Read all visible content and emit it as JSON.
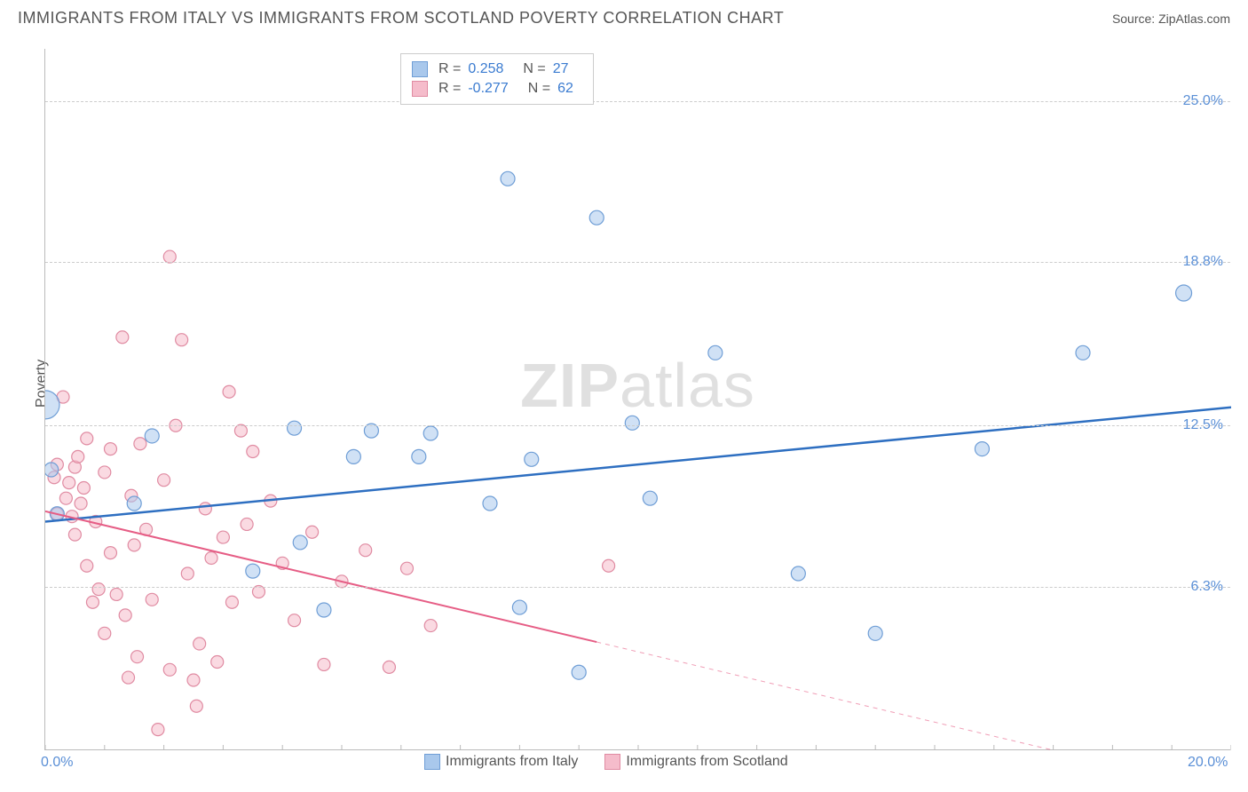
{
  "header": {
    "title": "IMMIGRANTS FROM ITALY VS IMMIGRANTS FROM SCOTLAND POVERTY CORRELATION CHART",
    "source_label": "Source: ",
    "source_name": "ZipAtlas.com"
  },
  "watermark": {
    "bold": "ZIP",
    "light": "atlas"
  },
  "ylabel": "Poverty",
  "chart": {
    "type": "scatter",
    "xlim": [
      0,
      20
    ],
    "ylim": [
      0,
      27
    ],
    "xticks": [
      {
        "v": 0,
        "label": "0.0%"
      },
      {
        "v": 20,
        "label": "20.0%"
      }
    ],
    "yticks": [
      {
        "v": 6.3,
        "label": "6.3%"
      },
      {
        "v": 12.5,
        "label": "12.5%"
      },
      {
        "v": 18.8,
        "label": "18.8%"
      },
      {
        "v": 25.0,
        "label": "25.0%"
      }
    ],
    "grid_color": "#cccccc",
    "background_color": "#ffffff"
  },
  "series": {
    "italy": {
      "label": "Immigrants from Italy",
      "fill": "#a9c8ec",
      "stroke": "#6f9ed6",
      "fill_opacity": 0.55,
      "trend": {
        "x1": 0,
        "y1": 8.8,
        "x2": 20,
        "y2": 13.2,
        "solid_until_x": 20,
        "color": "#2e6fc1",
        "width": 2.5
      },
      "stats": {
        "R": "0.258",
        "N": "27"
      },
      "points": [
        {
          "x": 0.0,
          "y": 13.3,
          "r": 16
        },
        {
          "x": 0.2,
          "y": 9.1,
          "r": 8
        },
        {
          "x": 0.1,
          "y": 10.8,
          "r": 8
        },
        {
          "x": 1.8,
          "y": 12.1,
          "r": 8
        },
        {
          "x": 1.5,
          "y": 9.5,
          "r": 8
        },
        {
          "x": 3.5,
          "y": 6.9,
          "r": 8
        },
        {
          "x": 4.2,
          "y": 12.4,
          "r": 8
        },
        {
          "x": 4.3,
          "y": 8.0,
          "r": 8
        },
        {
          "x": 4.7,
          "y": 5.4,
          "r": 8
        },
        {
          "x": 5.2,
          "y": 11.3,
          "r": 8
        },
        {
          "x": 5.5,
          "y": 12.3,
          "r": 8
        },
        {
          "x": 6.3,
          "y": 11.3,
          "r": 8
        },
        {
          "x": 6.5,
          "y": 12.2,
          "r": 8
        },
        {
          "x": 7.5,
          "y": 9.5,
          "r": 8
        },
        {
          "x": 7.8,
          "y": 22.0,
          "r": 8
        },
        {
          "x": 8.0,
          "y": 5.5,
          "r": 8
        },
        {
          "x": 8.2,
          "y": 11.2,
          "r": 8
        },
        {
          "x": 9.0,
          "y": 3.0,
          "r": 8
        },
        {
          "x": 9.3,
          "y": 20.5,
          "r": 8
        },
        {
          "x": 9.9,
          "y": 12.6,
          "r": 8
        },
        {
          "x": 10.2,
          "y": 9.7,
          "r": 8
        },
        {
          "x": 12.7,
          "y": 6.8,
          "r": 8
        },
        {
          "x": 14.0,
          "y": 4.5,
          "r": 8
        },
        {
          "x": 15.8,
          "y": 11.6,
          "r": 8
        },
        {
          "x": 17.5,
          "y": 15.3,
          "r": 8
        },
        {
          "x": 19.2,
          "y": 17.6,
          "r": 9
        },
        {
          "x": 11.3,
          "y": 15.3,
          "r": 8
        }
      ]
    },
    "scotland": {
      "label": "Immigrants from Scotland",
      "fill": "#f5bccb",
      "stroke": "#e08ba2",
      "fill_opacity": 0.55,
      "trend": {
        "x1": 0,
        "y1": 9.2,
        "x2": 17,
        "y2": 0.0,
        "solid_until_x": 9.3,
        "color": "#e65d85",
        "width": 2
      },
      "stats": {
        "R": "-0.277",
        "N": "62"
      },
      "points": [
        {
          "x": 0.2,
          "y": 9.1,
          "r": 7
        },
        {
          "x": 0.15,
          "y": 10.5,
          "r": 7
        },
        {
          "x": 0.2,
          "y": 11.0,
          "r": 7
        },
        {
          "x": 0.3,
          "y": 13.6,
          "r": 7
        },
        {
          "x": 0.35,
          "y": 9.7,
          "r": 7
        },
        {
          "x": 0.4,
          "y": 10.3,
          "r": 7
        },
        {
          "x": 0.45,
          "y": 9.0,
          "r": 7
        },
        {
          "x": 0.5,
          "y": 10.9,
          "r": 7
        },
        {
          "x": 0.5,
          "y": 8.3,
          "r": 7
        },
        {
          "x": 0.55,
          "y": 11.3,
          "r": 7
        },
        {
          "x": 0.6,
          "y": 9.5,
          "r": 7
        },
        {
          "x": 0.65,
          "y": 10.1,
          "r": 7
        },
        {
          "x": 0.7,
          "y": 7.1,
          "r": 7
        },
        {
          "x": 0.7,
          "y": 12.0,
          "r": 7
        },
        {
          "x": 0.8,
          "y": 5.7,
          "r": 7
        },
        {
          "x": 0.85,
          "y": 8.8,
          "r": 7
        },
        {
          "x": 0.9,
          "y": 6.2,
          "r": 7
        },
        {
          "x": 1.0,
          "y": 4.5,
          "r": 7
        },
        {
          "x": 1.0,
          "y": 10.7,
          "r": 7
        },
        {
          "x": 1.1,
          "y": 11.6,
          "r": 7
        },
        {
          "x": 1.1,
          "y": 7.6,
          "r": 7
        },
        {
          "x": 1.2,
          "y": 6.0,
          "r": 7
        },
        {
          "x": 1.3,
          "y": 15.9,
          "r": 7
        },
        {
          "x": 1.35,
          "y": 5.2,
          "r": 7
        },
        {
          "x": 1.4,
          "y": 2.8,
          "r": 7
        },
        {
          "x": 1.45,
          "y": 9.8,
          "r": 7
        },
        {
          "x": 1.5,
          "y": 7.9,
          "r": 7
        },
        {
          "x": 1.55,
          "y": 3.6,
          "r": 7
        },
        {
          "x": 1.6,
          "y": 11.8,
          "r": 7
        },
        {
          "x": 1.7,
          "y": 8.5,
          "r": 7
        },
        {
          "x": 1.8,
          "y": 5.8,
          "r": 7
        },
        {
          "x": 1.9,
          "y": 0.8,
          "r": 7
        },
        {
          "x": 2.0,
          "y": 10.4,
          "r": 7
        },
        {
          "x": 2.1,
          "y": 19.0,
          "r": 7
        },
        {
          "x": 2.1,
          "y": 3.1,
          "r": 7
        },
        {
          "x": 2.2,
          "y": 12.5,
          "r": 7
        },
        {
          "x": 2.3,
          "y": 15.8,
          "r": 7
        },
        {
          "x": 2.4,
          "y": 6.8,
          "r": 7
        },
        {
          "x": 2.5,
          "y": 2.7,
          "r": 7
        },
        {
          "x": 2.55,
          "y": 1.7,
          "r": 7
        },
        {
          "x": 2.6,
          "y": 4.1,
          "r": 7
        },
        {
          "x": 2.7,
          "y": 9.3,
          "r": 7
        },
        {
          "x": 2.8,
          "y": 7.4,
          "r": 7
        },
        {
          "x": 2.9,
          "y": 3.4,
          "r": 7
        },
        {
          "x": 3.0,
          "y": 8.2,
          "r": 7
        },
        {
          "x": 3.1,
          "y": 13.8,
          "r": 7
        },
        {
          "x": 3.15,
          "y": 5.7,
          "r": 7
        },
        {
          "x": 3.3,
          "y": 12.3,
          "r": 7
        },
        {
          "x": 3.4,
          "y": 8.7,
          "r": 7
        },
        {
          "x": 3.5,
          "y": 11.5,
          "r": 7
        },
        {
          "x": 3.6,
          "y": 6.1,
          "r": 7
        },
        {
          "x": 3.8,
          "y": 9.6,
          "r": 7
        },
        {
          "x": 4.0,
          "y": 7.2,
          "r": 7
        },
        {
          "x": 4.2,
          "y": 5.0,
          "r": 7
        },
        {
          "x": 4.5,
          "y": 8.4,
          "r": 7
        },
        {
          "x": 4.7,
          "y": 3.3,
          "r": 7
        },
        {
          "x": 5.0,
          "y": 6.5,
          "r": 7
        },
        {
          "x": 5.4,
          "y": 7.7,
          "r": 7
        },
        {
          "x": 5.8,
          "y": 3.2,
          "r": 7
        },
        {
          "x": 6.1,
          "y": 7.0,
          "r": 7
        },
        {
          "x": 6.5,
          "y": 4.8,
          "r": 7
        },
        {
          "x": 9.5,
          "y": 7.1,
          "r": 7
        }
      ]
    }
  },
  "legend_top_labels": {
    "R": "R =",
    "N": "N ="
  }
}
